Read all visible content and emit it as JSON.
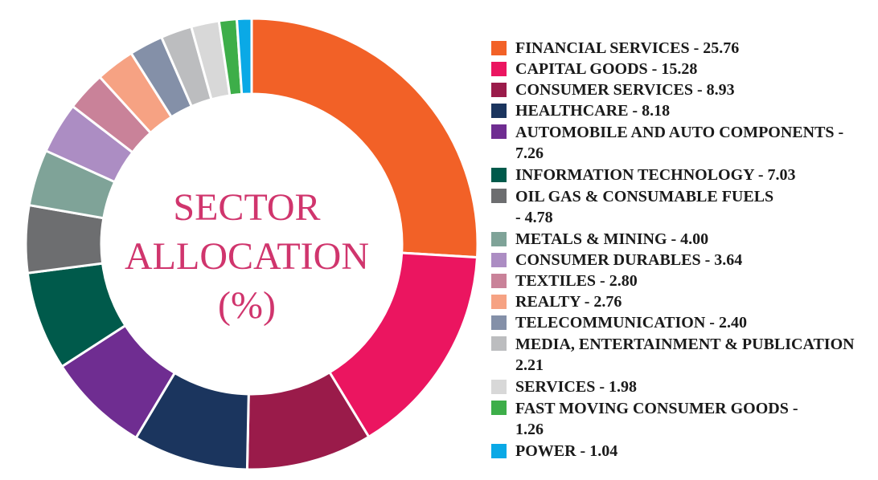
{
  "chart_data": {
    "type": "pie",
    "center_title": [
      "SECTOR",
      "ALLOCATION",
      "(%)"
    ],
    "legend_position": "right",
    "slices": [
      {
        "label": "FINANCIAL SERVICES",
        "value": 25.76,
        "display": "FINANCIAL SERVICES - 25.76",
        "color": "#f26127"
      },
      {
        "label": "CAPITAL GOODS",
        "value": 15.28,
        "display": "CAPITAL GOODS - 15.28",
        "color": "#eb1560"
      },
      {
        "label": "CONSUMER SERVICES",
        "value": 8.93,
        "display": "CONSUMER SERVICES - 8.93",
        "color": "#9a1b4a"
      },
      {
        "label": "HEALTHCARE",
        "value": 8.18,
        "display": "HEALTHCARE - 8.18",
        "color": "#1b355e"
      },
      {
        "label": "AUTOMOBILE AND AUTO COMPONENTS",
        "value": 7.26,
        "display": "AUTOMOBILE AND AUTO COMPONENTS - 7.26",
        "color": "#6f2d91"
      },
      {
        "label": "INFORMATION TECHNOLOGY",
        "value": 7.03,
        "display": "INFORMATION TECHNOLOGY - 7.03",
        "color": "#005a4b"
      },
      {
        "label": "OIL GAS & CONSUMABLE FUELS",
        "value": 4.78,
        "display": "OIL GAS & CONSUMABLE FUELS - 4.78",
        "color": "#6d6e70"
      },
      {
        "label": "METALS & MINING",
        "value": 4.0,
        "display": "METALS & MINING - 4.00",
        "color": "#7fa398"
      },
      {
        "label": "CONSUMER DURABLES",
        "value": 3.64,
        "display": "CONSUMER DURABLES - 3.64",
        "color": "#ac8dc3"
      },
      {
        "label": "TEXTILES",
        "value": 2.8,
        "display": "TEXTILES - 2.80",
        "color": "#c98299"
      },
      {
        "label": "REALTY",
        "value": 2.76,
        "display": "REALTY - 2.76",
        "color": "#f6a283"
      },
      {
        "label": "TELECOMMUNICATION",
        "value": 2.4,
        "display": "TELECOMMUNICATION - 2.40",
        "color": "#8490a8"
      },
      {
        "label": "MEDIA, ENTERTAINMENT & PUBLICATION",
        "value": 2.21,
        "display": "MEDIA, ENTERTAINMENT & PUBLICATION 2.21",
        "color": "#bcbdbf"
      },
      {
        "label": "SERVICES",
        "value": 1.98,
        "display": "SERVICES - 1.98",
        "color": "#d8d8d8"
      },
      {
        "label": "FAST MOVING CONSUMER GOODS",
        "value": 1.26,
        "display": "FAST MOVING CONSUMER GOODS - 1.26",
        "color": "#3dae49"
      },
      {
        "label": "POWER",
        "value": 1.04,
        "display": "POWER - 1.04",
        "color": "#0aa9e6"
      }
    ]
  },
  "legend": {
    "lines": [
      [
        "FINANCIAL SERVICES - 25.76"
      ],
      [
        "CAPITAL GOODS - 15.28"
      ],
      [
        "CONSUMER SERVICES - 8.93"
      ],
      [
        "HEALTHCARE - 8.18"
      ],
      [
        "AUTOMOBILE AND AUTO COMPONENTS -",
        "7.26"
      ],
      [
        "INFORMATION TECHNOLOGY - 7.03"
      ],
      [
        "OIL GAS & CONSUMABLE FUELS",
        "- 4.78"
      ],
      [
        "METALS & MINING - 4.00"
      ],
      [
        "CONSUMER DURABLES - 3.64"
      ],
      [
        "TEXTILES - 2.80"
      ],
      [
        "REALTY - 2.76"
      ],
      [
        "TELECOMMUNICATION - 2.40"
      ],
      [
        "MEDIA, ENTERTAINMENT & PUBLICATION",
        "2.21"
      ],
      [
        "SERVICES - 1.98"
      ],
      [
        "FAST MOVING CONSUMER GOODS -",
        "1.26"
      ],
      [
        "POWER - 1.04"
      ]
    ]
  }
}
